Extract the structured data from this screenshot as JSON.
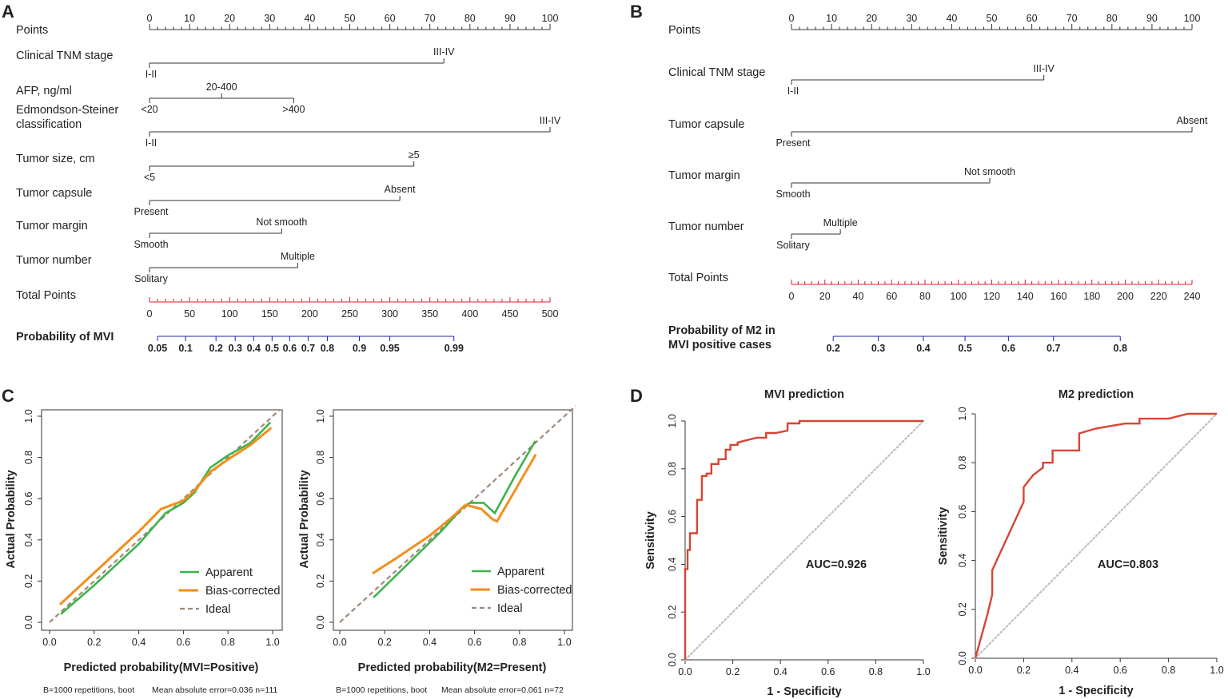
{
  "colors": {
    "axis": "#333333",
    "total_axis": "#e0202a",
    "prob_axis": "#2020a8",
    "apparent": "#3cb44b",
    "bias": "#f28e1c",
    "ideal": "#a08878",
    "roc": "#d64532",
    "diag": "#c0c0c0"
  },
  "chart_data": [
    {
      "panel": "A",
      "type": "nomogram",
      "points_label": "Points",
      "points_ticks": [
        0,
        10,
        20,
        30,
        40,
        50,
        60,
        70,
        80,
        90,
        100
      ],
      "variables": [
        {
          "name": "Clinical TNM stage",
          "levels": [
            {
              "label": "I-II",
              "points": 0
            },
            {
              "label": "III-IV",
              "points": 73.5
            }
          ]
        },
        {
          "name": "AFP, ng/ml",
          "levels": [
            {
              "label": "<20",
              "points": 0
            },
            {
              "label": "20-400",
              "points": 18
            },
            {
              "label": ">400",
              "points": 36
            }
          ]
        },
        {
          "name": "Edmondson-Steiner",
          "name2": "classification",
          "levels": [
            {
              "label": "I-II",
              "points": 0
            },
            {
              "label": "III-IV",
              "points": 100
            }
          ]
        },
        {
          "name": "Tumor size, cm",
          "levels": [
            {
              "label": "<5",
              "points": 0
            },
            {
              "label": "≥5",
              "points": 66
            }
          ]
        },
        {
          "name": "Tumor capsule",
          "levels": [
            {
              "label": "Present",
              "points": 0
            },
            {
              "label": "Absent",
              "points": 62.5
            }
          ]
        },
        {
          "name": "Tumor margin",
          "levels": [
            {
              "label": "Smooth",
              "points": 0
            },
            {
              "label": "Not smooth",
              "points": 33
            }
          ]
        },
        {
          "name": "Tumor number",
          "levels": [
            {
              "label": "Solitary",
              "points": 0
            },
            {
              "label": "Multiple",
              "points": 37
            }
          ]
        }
      ],
      "total_label": "Total Points",
      "total_ticks": [
        0,
        50,
        100,
        150,
        200,
        250,
        300,
        350,
        400,
        450,
        500
      ],
      "prob_label": "Probability of MVI",
      "prob_ticks": [
        {
          "label": "0.05",
          "total": 10
        },
        {
          "label": "0.1",
          "total": 45
        },
        {
          "label": "0.2",
          "total": 83
        },
        {
          "label": "0.3",
          "total": 107
        },
        {
          "label": "0.4",
          "total": 130
        },
        {
          "label": "0.5",
          "total": 153
        },
        {
          "label": "0.6",
          "total": 175
        },
        {
          "label": "0.7",
          "total": 198
        },
        {
          "label": "0.8",
          "total": 222
        },
        {
          "label": "0.9",
          "total": 262
        },
        {
          "label": "0.95",
          "total": 300
        },
        {
          "label": "0.99",
          "total": 380
        }
      ]
    },
    {
      "panel": "B",
      "type": "nomogram",
      "points_label": "Points",
      "points_ticks": [
        0,
        10,
        20,
        30,
        40,
        50,
        60,
        70,
        80,
        90,
        100
      ],
      "variables": [
        {
          "name": "Clinical TNM stage",
          "levels": [
            {
              "label": "I-II",
              "points": 0
            },
            {
              "label": "III-IV",
              "points": 63
            }
          ]
        },
        {
          "name": "Tumor capsule",
          "levels": [
            {
              "label": "Present",
              "points": 0
            },
            {
              "label": "Absent",
              "points": 100
            }
          ]
        },
        {
          "name": "Tumor margin",
          "levels": [
            {
              "label": "Smooth",
              "points": 0
            },
            {
              "label": "Not smooth",
              "points": 49.5
            }
          ]
        },
        {
          "name": "Tumor number",
          "levels": [
            {
              "label": "Solitary",
              "points": 0
            },
            {
              "label": "Multiple",
              "points": 12.2
            }
          ]
        }
      ],
      "total_label": "Total Points",
      "total_ticks": [
        0,
        20,
        40,
        60,
        80,
        100,
        120,
        140,
        160,
        180,
        200,
        220,
        240
      ],
      "prob_label": "Probability of M2 in",
      "prob_label2": "MVI positive cases",
      "prob_ticks": [
        {
          "label": "0.2",
          "total": 25
        },
        {
          "label": "0.3",
          "total": 52
        },
        {
          "label": "0.4",
          "total": 79
        },
        {
          "label": "0.5",
          "total": 104
        },
        {
          "label": "0.6",
          "total": 130
        },
        {
          "label": "0.7",
          "total": 157
        },
        {
          "label": "0.8",
          "total": 197
        }
      ]
    },
    {
      "panel": "C",
      "type": "line",
      "title": "",
      "xlabel": "Predicted probability(MVI=Positive)",
      "ylabel": "Actual Probability",
      "xlim": [
        0,
        1
      ],
      "ylim": [
        0,
        1
      ],
      "ticks": [
        "0.0",
        "0.2",
        "0.4",
        "0.6",
        "0.8",
        "1.0"
      ],
      "legend": [
        "Apparent",
        "Bias-corrected",
        "Ideal"
      ],
      "footnote_left": "B=1000 repetitions, boot",
      "footnote_right": "Mean absolute error=0.036 n=111",
      "series": [
        {
          "name": "Apparent",
          "x": [
            0.05,
            0.2,
            0.4,
            0.52,
            0.6,
            0.65,
            0.72,
            0.8,
            0.9,
            0.99
          ],
          "y": [
            0.04,
            0.18,
            0.38,
            0.53,
            0.58,
            0.63,
            0.75,
            0.81,
            0.87,
            0.97
          ]
        },
        {
          "name": "Bias-corrected",
          "x": [
            0.05,
            0.2,
            0.4,
            0.5,
            0.55,
            0.6,
            0.65,
            0.72,
            0.8,
            0.9,
            0.99
          ],
          "y": [
            0.09,
            0.24,
            0.44,
            0.55,
            0.57,
            0.59,
            0.64,
            0.73,
            0.79,
            0.86,
            0.94
          ]
        },
        {
          "name": "Ideal",
          "x": [
            0,
            1.03
          ],
          "y": [
            0,
            1.03
          ]
        }
      ]
    },
    {
      "panel": "C2",
      "type": "line",
      "title": "",
      "xlabel": "Predicted probability(M2=Present)",
      "ylabel": "Actual Probability",
      "xlim": [
        0,
        1
      ],
      "ylim": [
        0,
        1
      ],
      "ticks": [
        "0.0",
        "0.2",
        "0.4",
        "0.6",
        "0.8",
        "1.0"
      ],
      "legend": [
        "Apparent",
        "Bias-corrected",
        "Ideal"
      ],
      "footnote_left": "B=1000 repetitions, boot",
      "footnote_right": "Mean absolute error=0.061 n=72",
      "series": [
        {
          "name": "Apparent",
          "x": [
            0.15,
            0.3,
            0.45,
            0.55,
            0.58,
            0.64,
            0.69,
            0.78,
            0.87
          ],
          "y": [
            0.12,
            0.28,
            0.44,
            0.56,
            0.58,
            0.58,
            0.53,
            0.71,
            0.88
          ]
        },
        {
          "name": "Bias-corrected",
          "x": [
            0.15,
            0.25,
            0.4,
            0.5,
            0.56,
            0.63,
            0.68,
            0.7,
            0.78,
            0.87
          ],
          "y": [
            0.24,
            0.31,
            0.42,
            0.51,
            0.57,
            0.55,
            0.5,
            0.49,
            0.64,
            0.81
          ]
        },
        {
          "name": "Ideal",
          "x": [
            0,
            1.05
          ],
          "y": [
            0,
            1.05
          ]
        }
      ]
    },
    {
      "panel": "D",
      "type": "line",
      "title": "MVI prediction",
      "xlabel": "1 - Specificity",
      "ylabel": "Sensitivity",
      "xlim": [
        0,
        1
      ],
      "ylim": [
        0,
        1
      ],
      "ticks": [
        "0.0",
        "0.2",
        "0.4",
        "0.6",
        "0.8",
        "1.0"
      ],
      "annotation": "AUC=0.926",
      "series": [
        {
          "name": "ROC",
          "x": [
            0,
            0,
            0.01,
            0.01,
            0.02,
            0.02,
            0.03,
            0.03,
            0.05,
            0.05,
            0.07,
            0.07,
            0.09,
            0.09,
            0.11,
            0.11,
            0.14,
            0.14,
            0.17,
            0.17,
            0.19,
            0.19,
            0.22,
            0.22,
            0.26,
            0.3,
            0.34,
            0.34,
            0.38,
            0.43,
            0.43,
            0.48,
            0.48,
            1.0
          ],
          "y": [
            0,
            0.38,
            0.38,
            0.46,
            0.46,
            0.53,
            0.53,
            0.53,
            0.53,
            0.67,
            0.67,
            0.77,
            0.77,
            0.78,
            0.78,
            0.82,
            0.82,
            0.84,
            0.84,
            0.88,
            0.88,
            0.9,
            0.9,
            0.91,
            0.92,
            0.93,
            0.93,
            0.95,
            0.95,
            0.96,
            0.99,
            0.99,
            1.0,
            1.0
          ]
        },
        {
          "name": "Reference",
          "x": [
            0,
            1
          ],
          "y": [
            0,
            1
          ]
        }
      ]
    },
    {
      "panel": "D2",
      "type": "line",
      "title": "M2 prediction",
      "xlabel": "1 - Specificity",
      "ylabel": "Sensitivity",
      "xlim": [
        0,
        1
      ],
      "ylim": [
        0,
        1
      ],
      "ticks": [
        "0.0",
        "0.2",
        "0.4",
        "0.6",
        "0.8",
        "1.0"
      ],
      "annotation": "AUC=0.803",
      "series": [
        {
          "name": "ROC",
          "x": [
            0,
            0.05,
            0.07,
            0.07,
            0.2,
            0.2,
            0.24,
            0.28,
            0.28,
            0.32,
            0.32,
            0.36,
            0.36,
            0.43,
            0.43,
            0.5,
            0.56,
            0.62,
            0.68,
            0.68,
            0.8,
            0.88,
            1.0
          ],
          "y": [
            0,
            0.18,
            0.26,
            0.36,
            0.64,
            0.7,
            0.75,
            0.78,
            0.8,
            0.8,
            0.85,
            0.85,
            0.85,
            0.85,
            0.92,
            0.94,
            0.95,
            0.96,
            0.96,
            0.98,
            0.98,
            1.0,
            1.0
          ]
        },
        {
          "name": "Reference",
          "x": [
            0,
            1
          ],
          "y": [
            0,
            1
          ]
        }
      ]
    }
  ]
}
